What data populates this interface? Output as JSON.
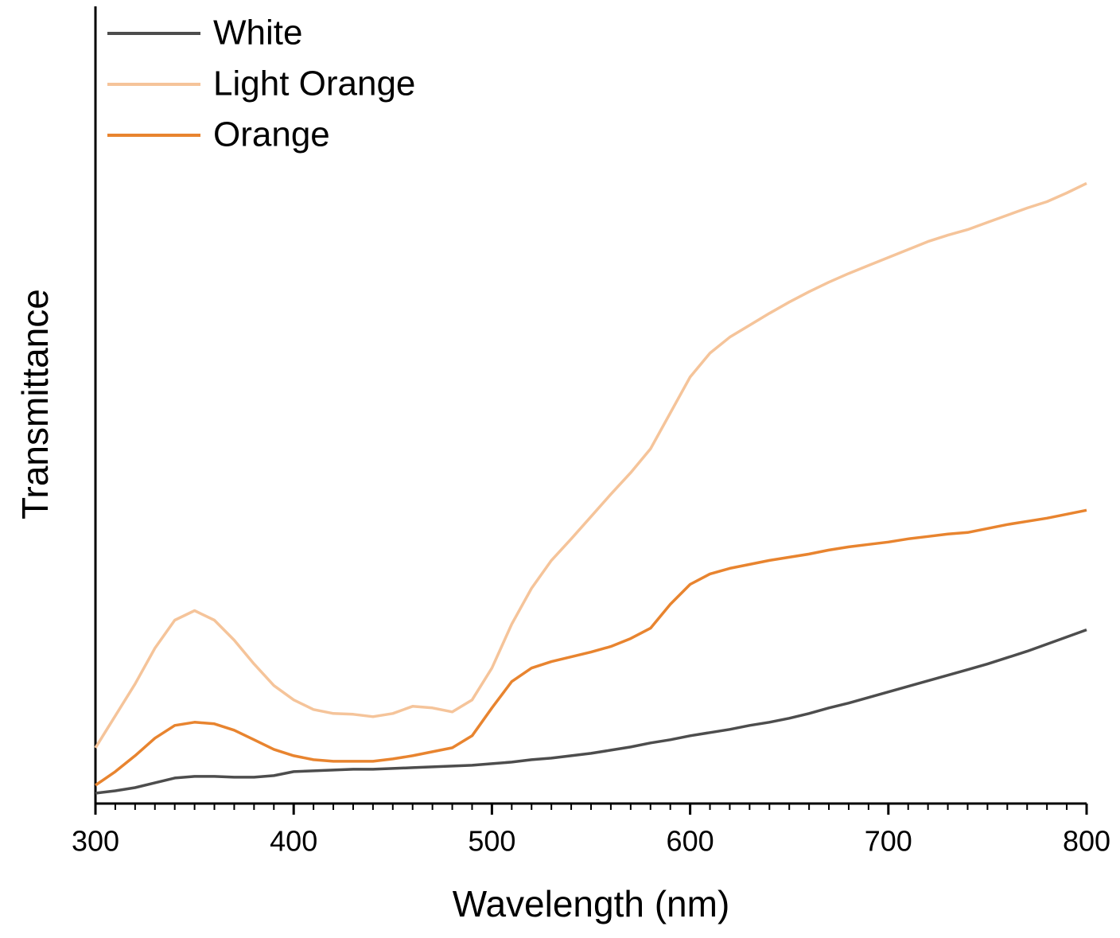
{
  "chart_data": {
    "type": "line",
    "xlabel": "Wavelength (nm)",
    "ylabel": "Transmittance",
    "xlim": [
      300,
      800
    ],
    "xticks": [
      300,
      400,
      500,
      600,
      700,
      800
    ],
    "ylim": [
      0,
      100
    ],
    "legend": "upper left",
    "x": [
      300,
      310,
      320,
      330,
      340,
      350,
      360,
      370,
      380,
      390,
      400,
      410,
      420,
      430,
      440,
      450,
      460,
      470,
      480,
      490,
      500,
      510,
      520,
      530,
      540,
      550,
      560,
      570,
      580,
      590,
      600,
      610,
      620,
      630,
      640,
      650,
      660,
      670,
      680,
      690,
      700,
      710,
      720,
      730,
      740,
      750,
      760,
      770,
      780,
      790,
      800
    ],
    "series": [
      {
        "name": "White",
        "color": "#4d4d4d",
        "values": [
          1.3,
          1.6,
          2.0,
          2.6,
          3.2,
          3.4,
          3.4,
          3.3,
          3.3,
          3.5,
          4.0,
          4.1,
          4.2,
          4.3,
          4.3,
          4.4,
          4.5,
          4.6,
          4.7,
          4.8,
          5.0,
          5.2,
          5.5,
          5.7,
          6.0,
          6.3,
          6.7,
          7.1,
          7.6,
          8.0,
          8.5,
          8.9,
          9.3,
          9.8,
          10.2,
          10.7,
          11.3,
          12.0,
          12.6,
          13.3,
          14.0,
          14.7,
          15.4,
          16.1,
          16.8,
          17.5,
          18.3,
          19.1,
          20.0,
          20.9,
          21.8
        ]
      },
      {
        "name": "Light Orange",
        "color": "#f5c49a",
        "values": [
          7.0,
          11.0,
          15.0,
          19.5,
          23.0,
          24.2,
          23.0,
          20.5,
          17.5,
          14.8,
          13.0,
          11.8,
          11.3,
          11.2,
          10.9,
          11.3,
          12.2,
          12.0,
          11.5,
          13.0,
          17.0,
          22.5,
          27.0,
          30.5,
          33.2,
          36.0,
          38.8,
          41.5,
          44.5,
          49.0,
          53.5,
          56.5,
          58.5,
          60.0,
          61.5,
          62.9,
          64.2,
          65.4,
          66.5,
          67.5,
          68.5,
          69.5,
          70.5,
          71.3,
          72.0,
          72.9,
          73.8,
          74.7,
          75.5,
          76.6,
          77.8
        ]
      },
      {
        "name": "Orange",
        "color": "#e8842f",
        "values": [
          2.3,
          4.0,
          6.0,
          8.2,
          9.8,
          10.2,
          10.0,
          9.2,
          8.0,
          6.8,
          6.0,
          5.5,
          5.3,
          5.3,
          5.3,
          5.6,
          6.0,
          6.5,
          7.0,
          8.5,
          12.0,
          15.3,
          17.0,
          17.8,
          18.4,
          19.0,
          19.7,
          20.7,
          22.0,
          25.0,
          27.5,
          28.8,
          29.5,
          30.0,
          30.5,
          30.9,
          31.3,
          31.8,
          32.2,
          32.5,
          32.8,
          33.2,
          33.5,
          33.8,
          34.0,
          34.5,
          35.0,
          35.4,
          35.8,
          36.3,
          36.8
        ]
      }
    ]
  }
}
